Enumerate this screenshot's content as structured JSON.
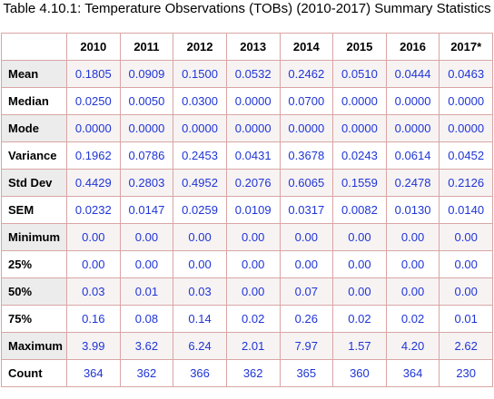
{
  "caption": "Table 4.10.1: Temperature Observations (TOBs) (2010-2017) Summary Statistics",
  "columns": [
    "2010",
    "2011",
    "2012",
    "2013",
    "2014",
    "2015",
    "2016",
    "2017*"
  ],
  "rows": [
    {
      "label": "Mean",
      "values": [
        "0.1805",
        "0.0909",
        "0.1500",
        "0.0532",
        "0.2462",
        "0.0510",
        "0.0444",
        "0.0463"
      ]
    },
    {
      "label": "Median",
      "values": [
        "0.0250",
        "0.0050",
        "0.0300",
        "0.0000",
        "0.0700",
        "0.0000",
        "0.0000",
        "0.0000"
      ]
    },
    {
      "label": "Mode",
      "values": [
        "0.0000",
        "0.0000",
        "0.0000",
        "0.0000",
        "0.0000",
        "0.0000",
        "0.0000",
        "0.0000"
      ]
    },
    {
      "label": "Variance",
      "values": [
        "0.1962",
        "0.0786",
        "0.2453",
        "0.0431",
        "0.3678",
        "0.0243",
        "0.0614",
        "0.0452"
      ]
    },
    {
      "label": "Std Dev",
      "values": [
        "0.4429",
        "0.2803",
        "0.4952",
        "0.2076",
        "0.6065",
        "0.1559",
        "0.2478",
        "0.2126"
      ]
    },
    {
      "label": "SEM",
      "values": [
        "0.0232",
        "0.0147",
        "0.0259",
        "0.0109",
        "0.0317",
        "0.0082",
        "0.0130",
        "0.0140"
      ]
    },
    {
      "label": "Minimum",
      "values": [
        "0.00",
        "0.00",
        "0.00",
        "0.00",
        "0.00",
        "0.00",
        "0.00",
        "0.00"
      ]
    },
    {
      "label": "25%",
      "values": [
        "0.00",
        "0.00",
        "0.00",
        "0.00",
        "0.00",
        "0.00",
        "0.00",
        "0.00"
      ]
    },
    {
      "label": "50%",
      "values": [
        "0.03",
        "0.01",
        "0.03",
        "0.00",
        "0.07",
        "0.00",
        "0.00",
        "0.00"
      ]
    },
    {
      "label": "75%",
      "values": [
        "0.16",
        "0.08",
        "0.14",
        "0.02",
        "0.26",
        "0.02",
        "0.02",
        "0.01"
      ]
    },
    {
      "label": "Maximum",
      "values": [
        "3.99",
        "3.62",
        "6.24",
        "2.01",
        "7.97",
        "1.57",
        "4.20",
        "2.62"
      ]
    },
    {
      "label": "Count",
      "values": [
        "364",
        "362",
        "366",
        "362",
        "365",
        "360",
        "364",
        "230"
      ]
    }
  ],
  "colors": {
    "value_text": "#1f35d6",
    "cell_border": "#d9a5a5",
    "row_header_stripe": "#ececec",
    "cell_stripe": "#f7f3f3"
  }
}
